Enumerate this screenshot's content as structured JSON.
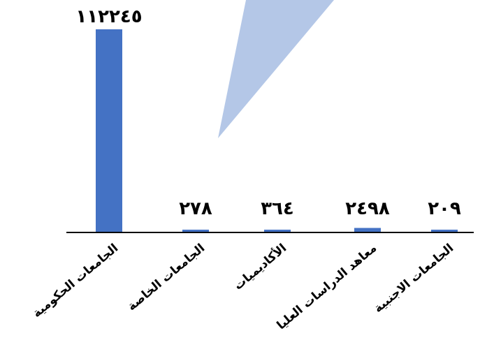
{
  "chart_data": {
    "type": "bar",
    "categories": [
      "الجامعات الحكومية",
      "الجامعات الخاصة",
      "الأكاديميات",
      "معاهد الدراسات العليا",
      "الجامعات الاجنبية"
    ],
    "values": [
      112245,
      278,
      364,
      2498,
      209
    ],
    "data_labels": [
      "١١٢٢٤٥",
      "٢٧٨",
      "٣٦٤",
      "٢٤٩٨",
      "٢٠٩"
    ],
    "ylim": [
      0,
      112245
    ],
    "grid": false,
    "legend": "none",
    "bar_color": "#4472C4",
    "axis_color": "#000000",
    "overlay_shape_color": "#B4C7E7"
  }
}
